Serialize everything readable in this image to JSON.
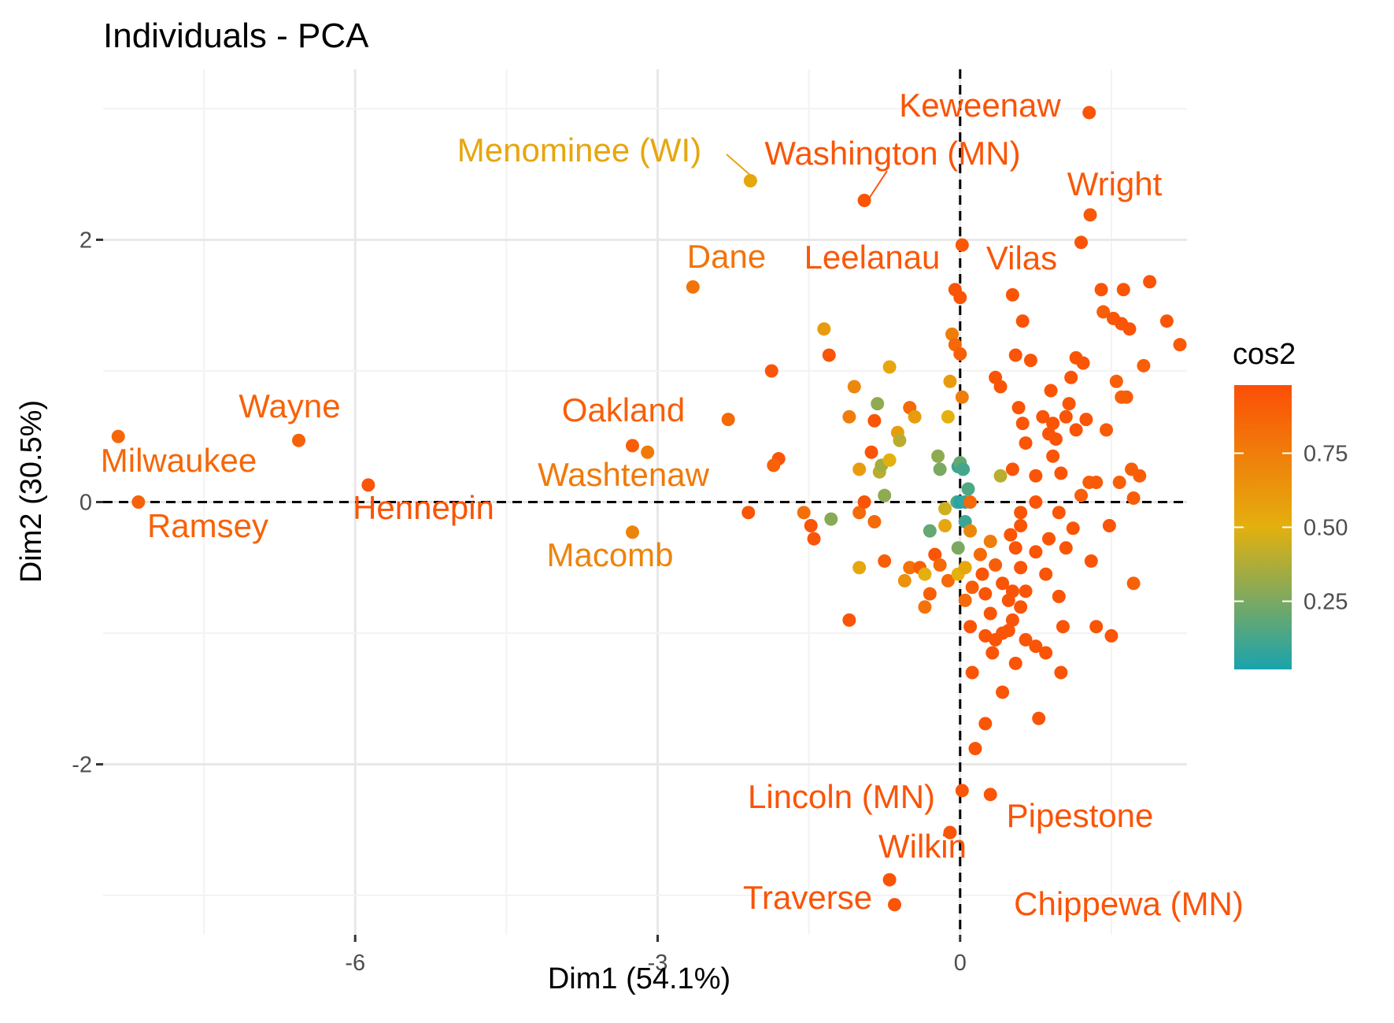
{
  "colors": {
    "grid_major": "#e8e8e8",
    "grid_minor": "#f3f3f3",
    "zero_line": "#000000",
    "text": "#000000",
    "tick_text": "#4d4d4d",
    "gradient_low": "#1aa3ae",
    "gradient_mid": "#e3b00e",
    "gradient_high": "#fc4e07"
  },
  "chart_data": {
    "type": "scatter",
    "title": "Individuals - PCA",
    "xlabel": "Dim1 (54.1%)",
    "ylabel": "Dim2 (30.5%)",
    "xlim": [
      -8.5,
      2.25
    ],
    "ylim": [
      -3.3,
      3.3
    ],
    "x_ticks": [
      {
        "v": -6,
        "label": "-6"
      },
      {
        "v": -3,
        "label": "-3"
      },
      {
        "v": 0,
        "label": "0"
      }
    ],
    "y_ticks": [
      {
        "v": -2,
        "label": "-2"
      },
      {
        "v": 0,
        "label": "0"
      },
      {
        "v": 2,
        "label": "2"
      }
    ],
    "grid": true,
    "zero_lines": "dashed",
    "legend": {
      "title": "cos2",
      "position": "right",
      "range": [
        0.02,
        0.98
      ],
      "ticks": [
        {
          "v": 0.25,
          "label": "0.25"
        },
        {
          "v": 0.5,
          "label": "0.50"
        },
        {
          "v": 0.75,
          "label": "0.75"
        }
      ]
    },
    "labeled_points": [
      {
        "name": "Keweenaw",
        "x": 1.28,
        "y": 2.97,
        "cos2": 0.95
      },
      {
        "name": "Menominee (WI)",
        "x": -2.08,
        "y": 2.45,
        "cos2": 0.55
      },
      {
        "name": "Washington (MN)",
        "x": -0.95,
        "y": 2.3,
        "cos2": 0.95
      },
      {
        "name": "Wright",
        "x": 1.29,
        "y": 2.19,
        "cos2": 0.93
      },
      {
        "name": "Dane",
        "x": -2.65,
        "y": 1.64,
        "cos2": 0.8
      },
      {
        "name": "Leelanau",
        "x": 0.02,
        "y": 1.96,
        "cos2": 0.93
      },
      {
        "name": "Vilas",
        "x": 1.2,
        "y": 1.98,
        "cos2": 0.95
      },
      {
        "name": "Wayne",
        "x": -6.56,
        "y": 0.47,
        "cos2": 0.88
      },
      {
        "name": "Milwaukee",
        "x": -8.35,
        "y": 0.5,
        "cos2": 0.86
      },
      {
        "name": "Oakland",
        "x": -3.25,
        "y": 0.43,
        "cos2": 0.9
      },
      {
        "name": "Washtenaw",
        "x": -3.1,
        "y": 0.38,
        "cos2": 0.77
      },
      {
        "name": "Hennepin",
        "x": -5.87,
        "y": 0.13,
        "cos2": 0.95
      },
      {
        "name": "Ramsey",
        "x": -8.15,
        "y": 0.0,
        "cos2": 0.88
      },
      {
        "name": "Macomb",
        "x": -3.25,
        "y": -0.23,
        "cos2": 0.72
      },
      {
        "name": "Lincoln (MN)",
        "x": -0.1,
        "y": -2.52,
        "cos2": 0.95
      },
      {
        "name": "Pipestone",
        "x": 0.3,
        "y": -2.23,
        "cos2": 0.95
      },
      {
        "name": "Wilkin",
        "x": -0.7,
        "y": -2.88,
        "cos2": 0.95
      },
      {
        "name": "Traverse",
        "x": -0.65,
        "y": -3.07,
        "cos2": 0.95
      },
      {
        "name": "Chippewa (MN)",
        "x": 0.02,
        "y": -2.2,
        "cos2": 0.95
      }
    ],
    "points": [
      [
        -2.3,
        0.63,
        0.85
      ],
      [
        -1.87,
        1.0,
        0.95
      ],
      [
        -1.8,
        0.33,
        0.95
      ],
      [
        -1.85,
        0.28,
        0.88
      ],
      [
        -2.1,
        -0.08,
        0.95
      ],
      [
        -1.55,
        -0.08,
        0.82
      ],
      [
        -1.48,
        -0.18,
        0.95
      ],
      [
        -1.45,
        -0.28,
        0.95
      ],
      [
        -1.35,
        1.32,
        0.6
      ],
      [
        -1.3,
        1.12,
        0.95
      ],
      [
        -1.28,
        -0.13,
        0.28
      ],
      [
        -1.1,
        0.65,
        0.75
      ],
      [
        -1.05,
        0.88,
        0.7
      ],
      [
        -1.0,
        0.25,
        0.6
      ],
      [
        -1.0,
        -0.08,
        0.85
      ],
      [
        -1.0,
        -0.5,
        0.55
      ],
      [
        -1.1,
        -0.9,
        0.95
      ],
      [
        -0.95,
        0.0,
        0.95
      ],
      [
        -0.88,
        0.38,
        0.95
      ],
      [
        -0.85,
        -0.15,
        0.85
      ],
      [
        -0.85,
        0.62,
        0.95
      ],
      [
        -0.82,
        0.75,
        0.3
      ],
      [
        -0.8,
        0.23,
        0.4
      ],
      [
        -0.78,
        0.28,
        0.35
      ],
      [
        -0.75,
        0.05,
        0.3
      ],
      [
        -0.7,
        0.32,
        0.5
      ],
      [
        -0.75,
        -0.45,
        0.9
      ],
      [
        -0.7,
        1.03,
        0.55
      ],
      [
        -0.62,
        0.53,
        0.6
      ],
      [
        -0.6,
        0.47,
        0.4
      ],
      [
        -0.55,
        -0.6,
        0.65
      ],
      [
        -0.5,
        -0.5,
        0.8
      ],
      [
        -0.5,
        0.72,
        0.85
      ],
      [
        -0.45,
        0.65,
        0.6
      ],
      [
        -0.4,
        -0.5,
        0.9
      ],
      [
        -0.35,
        -0.55,
        0.5
      ],
      [
        -0.35,
        -0.8,
        0.8
      ],
      [
        -0.3,
        -0.7,
        0.9
      ],
      [
        -0.3,
        -0.22,
        0.2
      ],
      [
        -0.25,
        -0.4,
        0.95
      ],
      [
        -0.22,
        0.35,
        0.3
      ],
      [
        -0.2,
        0.25,
        0.25
      ],
      [
        -0.2,
        -0.48,
        0.85
      ],
      [
        -0.15,
        -0.05,
        0.45
      ],
      [
        -0.15,
        -0.18,
        0.55
      ],
      [
        -0.12,
        0.65,
        0.5
      ],
      [
        -0.12,
        -0.6,
        0.85
      ],
      [
        -0.1,
        0.92,
        0.6
      ],
      [
        -0.08,
        1.28,
        0.75
      ],
      [
        -0.05,
        1.2,
        0.85
      ],
      [
        -0.05,
        1.62,
        0.95
      ],
      [
        -0.03,
        0.0,
        0.15
      ],
      [
        -0.02,
        0.27,
        0.1
      ],
      [
        -0.02,
        -0.35,
        0.25
      ],
      [
        -0.02,
        -0.55,
        0.5
      ],
      [
        0.0,
        1.56,
        0.95
      ],
      [
        0.0,
        1.13,
        0.9
      ],
      [
        0.0,
        0.3,
        0.2
      ],
      [
        0.0,
        0.0,
        0.05
      ],
      [
        0.02,
        0.8,
        0.75
      ],
      [
        0.03,
        0.25,
        0.12
      ],
      [
        0.05,
        0.0,
        0.08
      ],
      [
        0.05,
        -0.15,
        0.1
      ],
      [
        0.05,
        -0.5,
        0.55
      ],
      [
        0.05,
        -0.75,
        0.85
      ],
      [
        0.08,
        0.1,
        0.15
      ],
      [
        0.1,
        0.0,
        0.85
      ],
      [
        0.1,
        -0.22,
        0.7
      ],
      [
        0.12,
        -0.65,
        0.9
      ],
      [
        0.1,
        -0.95,
        0.95
      ],
      [
        0.12,
        -1.3,
        0.95
      ],
      [
        0.15,
        -1.88,
        0.95
      ],
      [
        0.2,
        -0.4,
        0.85
      ],
      [
        0.22,
        -0.55,
        0.95
      ],
      [
        0.25,
        -0.7,
        0.95
      ],
      [
        0.25,
        -1.02,
        0.95
      ],
      [
        0.25,
        -1.69,
        0.95
      ],
      [
        0.3,
        -0.3,
        0.75
      ],
      [
        0.3,
        -0.85,
        0.95
      ],
      [
        0.32,
        -1.15,
        0.95
      ],
      [
        0.35,
        -0.48,
        0.9
      ],
      [
        0.35,
        -1.05,
        0.95
      ],
      [
        0.35,
        0.95,
        0.95
      ],
      [
        0.4,
        0.2,
        0.4
      ],
      [
        0.4,
        0.88,
        0.95
      ],
      [
        0.42,
        -0.62,
        0.95
      ],
      [
        0.42,
        -1.0,
        0.95
      ],
      [
        0.42,
        -1.45,
        0.95
      ],
      [
        0.48,
        -0.75,
        0.95
      ],
      [
        0.48,
        -0.98,
        0.95
      ],
      [
        0.5,
        -0.25,
        0.95
      ],
      [
        0.52,
        -0.68,
        0.95
      ],
      [
        0.52,
        -0.9,
        0.95
      ],
      [
        0.52,
        0.25,
        0.95
      ],
      [
        0.52,
        1.58,
        0.95
      ],
      [
        0.55,
        1.12,
        0.95
      ],
      [
        0.55,
        -0.35,
        0.95
      ],
      [
        0.55,
        -1.23,
        0.95
      ],
      [
        0.58,
        0.72,
        0.95
      ],
      [
        0.6,
        -0.08,
        0.95
      ],
      [
        0.6,
        -0.18,
        0.95
      ],
      [
        0.6,
        -0.5,
        0.95
      ],
      [
        0.6,
        -0.8,
        0.95
      ],
      [
        0.62,
        1.38,
        0.95
      ],
      [
        0.62,
        0.6,
        0.95
      ],
      [
        0.65,
        0.45,
        0.95
      ],
      [
        0.65,
        -0.68,
        0.95
      ],
      [
        0.65,
        -1.05,
        0.95
      ],
      [
        0.7,
        1.08,
        0.95
      ],
      [
        0.75,
        0.0,
        0.95
      ],
      [
        0.75,
        0.2,
        0.95
      ],
      [
        0.75,
        -0.38,
        0.95
      ],
      [
        0.75,
        -1.1,
        0.95
      ],
      [
        0.78,
        -1.65,
        0.95
      ],
      [
        0.82,
        0.65,
        0.95
      ],
      [
        0.85,
        -0.55,
        0.95
      ],
      [
        0.85,
        -1.15,
        0.95
      ],
      [
        0.88,
        0.52,
        0.95
      ],
      [
        0.88,
        -0.28,
        0.95
      ],
      [
        0.9,
        0.85,
        0.95
      ],
      [
        0.92,
        0.6,
        0.95
      ],
      [
        0.92,
        0.35,
        0.95
      ],
      [
        0.95,
        0.48,
        0.95
      ],
      [
        0.98,
        -0.08,
        0.95
      ],
      [
        0.98,
        -0.72,
        0.95
      ],
      [
        1.0,
        0.22,
        0.95
      ],
      [
        1.0,
        -1.3,
        0.95
      ],
      [
        1.02,
        -0.95,
        0.95
      ],
      [
        1.05,
        0.65,
        0.95
      ],
      [
        1.05,
        -0.35,
        0.95
      ],
      [
        1.08,
        0.75,
        0.95
      ],
      [
        1.1,
        0.95,
        0.95
      ],
      [
        1.12,
        -0.2,
        0.95
      ],
      [
        1.15,
        1.1,
        0.95
      ],
      [
        1.15,
        0.55,
        0.95
      ],
      [
        1.2,
        0.05,
        0.9
      ],
      [
        1.22,
        1.06,
        0.95
      ],
      [
        1.25,
        0.63,
        0.95
      ],
      [
        1.28,
        0.15,
        0.9
      ],
      [
        1.3,
        -0.45,
        0.95
      ],
      [
        1.35,
        -0.95,
        0.95
      ],
      [
        1.35,
        0.15,
        0.92
      ],
      [
        1.4,
        1.62,
        0.95
      ],
      [
        1.42,
        1.45,
        0.9
      ],
      [
        1.45,
        0.55,
        0.92
      ],
      [
        1.48,
        -0.18,
        0.95
      ],
      [
        1.5,
        -1.02,
        0.95
      ],
      [
        1.52,
        1.4,
        0.95
      ],
      [
        1.55,
        0.92,
        0.9
      ],
      [
        1.58,
        0.15,
        0.9
      ],
      [
        1.6,
        0.8,
        0.88
      ],
      [
        1.6,
        1.36,
        0.95
      ],
      [
        1.62,
        1.62,
        0.95
      ],
      [
        1.65,
        0.8,
        0.9
      ],
      [
        1.68,
        1.32,
        0.95
      ],
      [
        1.7,
        0.25,
        0.9
      ],
      [
        1.72,
        0.03,
        0.9
      ],
      [
        1.72,
        -0.62,
        0.88
      ],
      [
        1.78,
        0.2,
        0.9
      ],
      [
        1.82,
        1.04,
        0.9
      ],
      [
        1.88,
        1.68,
        0.95
      ],
      [
        2.05,
        1.38,
        0.95
      ],
      [
        2.18,
        1.2,
        0.92
      ]
    ]
  }
}
